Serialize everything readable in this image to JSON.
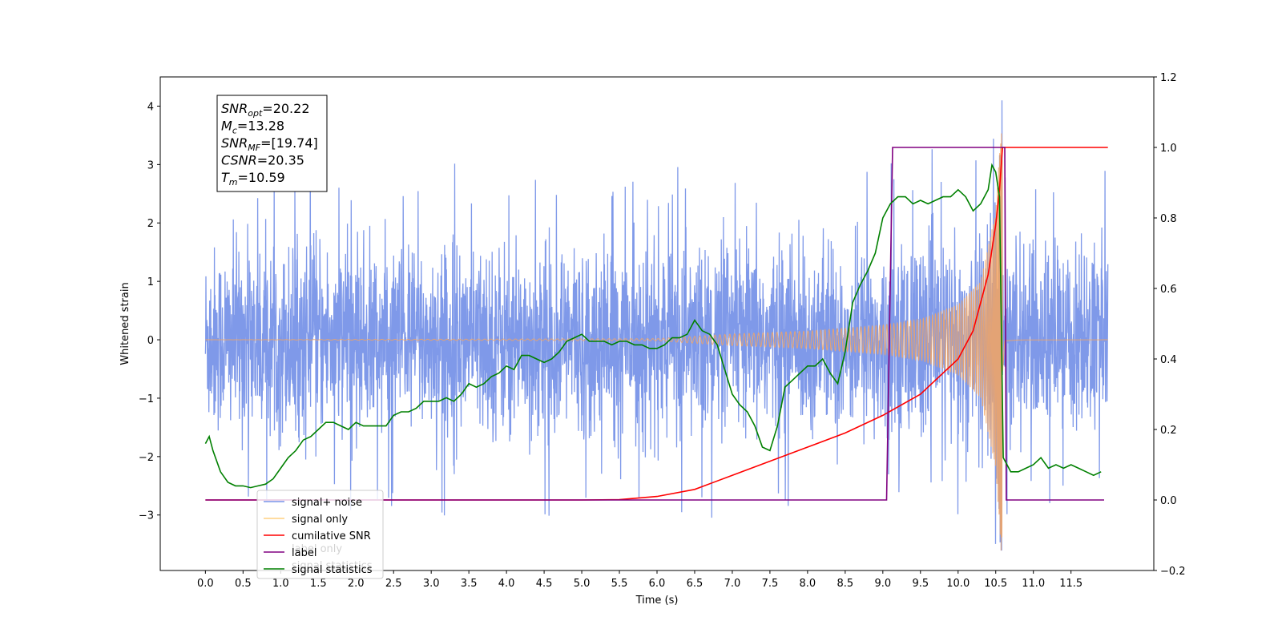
{
  "chart_data": {
    "type": "line",
    "xlabel": "Time (s)",
    "ylabel": "Whitened strain",
    "xlim": [
      -0.6,
      12.6
    ],
    "ylim": [
      -3.95,
      4.5
    ],
    "y2lim": [
      -0.2,
      1.2
    ],
    "x_ticks": [
      0.0,
      0.5,
      1.0,
      1.5,
      2.0,
      2.5,
      3.0,
      3.5,
      4.0,
      4.5,
      5.0,
      5.5,
      6.0,
      6.5,
      7.0,
      7.5,
      8.0,
      8.5,
      9.0,
      9.5,
      10.0,
      10.5,
      11.0,
      11.5
    ],
    "x_tick_labels": [
      "0.0",
      "0.5",
      "1.0",
      "1.5",
      "2.0",
      "2.5",
      "3.0",
      "3.5",
      "4.0",
      "4.5",
      "5.0",
      "5.5",
      "6.0",
      "6.5",
      "7.0",
      "7.5",
      "8.0",
      "8.5",
      "9.0",
      "9.5",
      "10.0",
      "10.5",
      "11.0",
      "11.5"
    ],
    "y_ticks": [
      -3,
      -2,
      -1,
      0,
      1,
      2,
      3,
      4
    ],
    "y_tick_labels": [
      "−3",
      "−2",
      "−1",
      "0",
      "1",
      "2",
      "3",
      "4"
    ],
    "y2_ticks": [
      -0.2,
      0.0,
      0.2,
      0.4,
      0.6,
      0.8,
      1.0,
      1.2
    ],
    "y2_tick_labels": [
      "−0.2",
      "0.0",
      "0.2",
      "0.4",
      "0.6",
      "0.8",
      "1.0",
      "1.2"
    ],
    "grid": false,
    "legend_position": "bottom-left",
    "annotation": {
      "lines": [
        {
          "base": "SNR",
          "sub": "opt",
          "value": "=20.22"
        },
        {
          "base": "M",
          "sub": "c",
          "value": "=13.28"
        },
        {
          "base": "SNR",
          "sub": "MF",
          "value": "=[19.74]"
        },
        {
          "base": "CSNR",
          "sub": "",
          "value": "=20.35"
        },
        {
          "base": "T",
          "sub": "m",
          "value": "=10.59"
        }
      ]
    },
    "series": [
      {
        "name": "signal+ noise",
        "color": "#7893e8",
        "axis": "left",
        "kind": "noise",
        "x_range": [
          0.0,
          11.99
        ],
        "typical_band": [
          -1.6,
          1.6
        ],
        "peak_max": 4.1,
        "peak_min": -3.6,
        "signal_added": true
      },
      {
        "name": "signal only",
        "color": "#f4a460",
        "axis": "left",
        "kind": "chirp",
        "x_range": [
          0.0,
          11.99
        ],
        "merger_time": 10.59,
        "peak_amplitude": 3.8,
        "envelope": [
          [
            0.0,
            0.0
          ],
          [
            6.0,
            0.02
          ],
          [
            7.0,
            0.1
          ],
          [
            8.0,
            0.15
          ],
          [
            9.0,
            0.25
          ],
          [
            9.5,
            0.35
          ],
          [
            10.0,
            0.6
          ],
          [
            10.3,
            1.0
          ],
          [
            10.5,
            2.2
          ],
          [
            10.58,
            3.8
          ],
          [
            10.62,
            0.1
          ],
          [
            10.8,
            0.02
          ],
          [
            11.99,
            0.0
          ]
        ]
      },
      {
        "name": "cumilative SNR",
        "color": "#ff0000",
        "axis": "right",
        "x": [
          0.0,
          5.0,
          5.5,
          6.0,
          6.5,
          7.0,
          7.5,
          8.0,
          8.5,
          9.0,
          9.5,
          10.0,
          10.2,
          10.4,
          10.5,
          10.55,
          10.59,
          10.6,
          11.0,
          11.99
        ],
        "y": [
          0.0,
          0.0,
          0.001,
          0.01,
          0.03,
          0.07,
          0.11,
          0.15,
          0.19,
          0.24,
          0.3,
          0.4,
          0.48,
          0.64,
          0.78,
          0.88,
          1.0,
          1.0,
          1.0,
          1.0
        ]
      },
      {
        "name": "label",
        "color": "#800080",
        "axis": "right",
        "x": [
          0.0,
          9.05,
          9.13,
          10.62,
          10.64,
          11.94
        ],
        "y": [
          0.0,
          0.0,
          1.0,
          1.0,
          0.0,
          0.0
        ]
      },
      {
        "name": "signal statistics",
        "color": "#008000",
        "axis": "right",
        "x": [
          0.0,
          0.05,
          0.1,
          0.2,
          0.3,
          0.4,
          0.5,
          0.6,
          0.7,
          0.8,
          0.9,
          1.0,
          1.1,
          1.2,
          1.3,
          1.4,
          1.5,
          1.6,
          1.7,
          1.8,
          1.9,
          2.0,
          2.1,
          2.2,
          2.3,
          2.4,
          2.5,
          2.6,
          2.7,
          2.8,
          2.9,
          3.0,
          3.1,
          3.2,
          3.3,
          3.4,
          3.5,
          3.6,
          3.7,
          3.8,
          3.9,
          4.0,
          4.1,
          4.2,
          4.3,
          4.4,
          4.5,
          4.6,
          4.7,
          4.8,
          4.9,
          5.0,
          5.1,
          5.2,
          5.3,
          5.4,
          5.5,
          5.6,
          5.7,
          5.8,
          5.9,
          6.0,
          6.1,
          6.2,
          6.3,
          6.4,
          6.5,
          6.6,
          6.7,
          6.8,
          6.9,
          7.0,
          7.1,
          7.2,
          7.3,
          7.4,
          7.5,
          7.6,
          7.7,
          7.8,
          7.9,
          8.0,
          8.1,
          8.2,
          8.3,
          8.4,
          8.5,
          8.6,
          8.7,
          8.8,
          8.9,
          9.0,
          9.1,
          9.2,
          9.3,
          9.4,
          9.5,
          9.6,
          9.7,
          9.8,
          9.9,
          10.0,
          10.1,
          10.2,
          10.3,
          10.4,
          10.45,
          10.5,
          10.55,
          10.6,
          10.7,
          10.8,
          10.9,
          11.0,
          11.1,
          11.2,
          11.3,
          11.4,
          11.5,
          11.6,
          11.7,
          11.8,
          11.9
        ],
        "y": [
          0.16,
          0.18,
          0.14,
          0.08,
          0.05,
          0.04,
          0.04,
          0.035,
          0.04,
          0.045,
          0.06,
          0.09,
          0.12,
          0.14,
          0.17,
          0.18,
          0.2,
          0.22,
          0.22,
          0.21,
          0.2,
          0.22,
          0.21,
          0.21,
          0.21,
          0.21,
          0.24,
          0.25,
          0.25,
          0.26,
          0.28,
          0.28,
          0.28,
          0.29,
          0.28,
          0.3,
          0.33,
          0.32,
          0.33,
          0.35,
          0.36,
          0.38,
          0.37,
          0.41,
          0.41,
          0.4,
          0.39,
          0.4,
          0.42,
          0.45,
          0.46,
          0.47,
          0.45,
          0.45,
          0.45,
          0.44,
          0.45,
          0.45,
          0.44,
          0.44,
          0.43,
          0.43,
          0.44,
          0.46,
          0.46,
          0.47,
          0.51,
          0.48,
          0.47,
          0.44,
          0.37,
          0.3,
          0.27,
          0.25,
          0.21,
          0.15,
          0.14,
          0.21,
          0.32,
          0.34,
          0.36,
          0.38,
          0.38,
          0.4,
          0.36,
          0.33,
          0.42,
          0.56,
          0.61,
          0.65,
          0.7,
          0.8,
          0.84,
          0.86,
          0.86,
          0.84,
          0.85,
          0.84,
          0.85,
          0.86,
          0.86,
          0.88,
          0.86,
          0.82,
          0.84,
          0.88,
          0.95,
          0.93,
          0.86,
          0.12,
          0.08,
          0.08,
          0.09,
          0.1,
          0.12,
          0.09,
          0.1,
          0.09,
          0.1,
          0.09,
          0.08,
          0.07,
          0.08
        ]
      }
    ],
    "legend": [
      {
        "label": "signal+ noise",
        "color": "#7893e8"
      },
      {
        "label": "signal only",
        "color": "#ffd080"
      },
      {
        "label": "cumilative SNR",
        "color": "#ff0000"
      },
      {
        "label": "label",
        "color": "#800080"
      },
      {
        "label": "signal statistics",
        "color": "#008000"
      }
    ],
    "legend_hidden_text": [
      "label only",
      "signal statistics"
    ]
  }
}
